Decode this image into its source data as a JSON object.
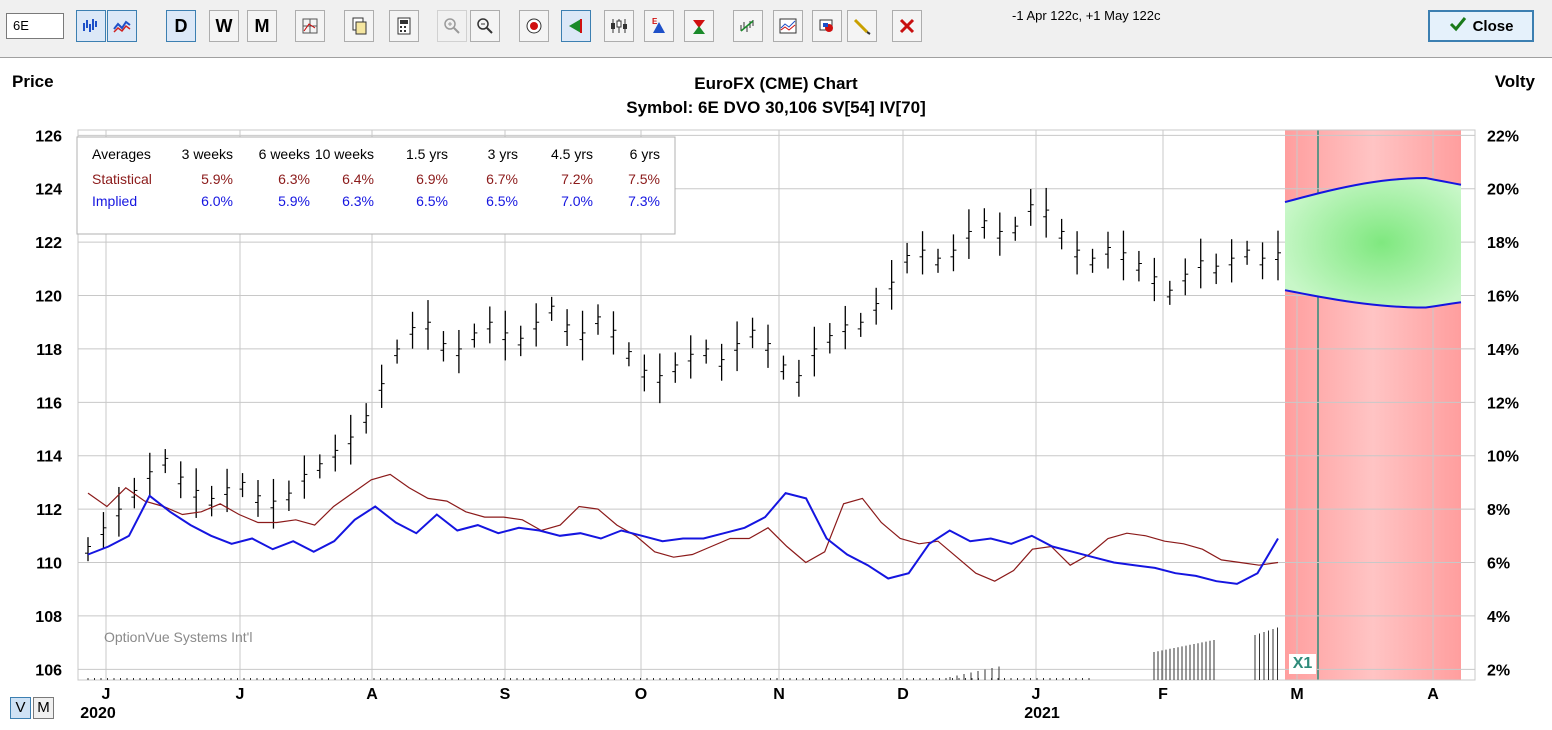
{
  "toolbar": {
    "symbol_value": "6E",
    "period_buttons": [
      "D",
      "W",
      "M"
    ],
    "message": "-1 Apr 122c, +1 May 122c",
    "close_label": "Close"
  },
  "chart": {
    "title": "EuroFX (CME) Chart",
    "subtitle": "Symbol: 6E  DVO 30,106  SV[54]  IV[70]",
    "left_axis_label": "Price",
    "right_axis_label": "Volty",
    "price_ticks": [
      "126",
      "124",
      "122",
      "120",
      "118",
      "116",
      "114",
      "112",
      "110",
      "108",
      "106"
    ],
    "volty_ticks": [
      "22%",
      "20%",
      "18%",
      "16%",
      "14%",
      "12%",
      "10%",
      "8%",
      "6%",
      "4%",
      "2%"
    ],
    "month_ticks": [
      "J",
      "J",
      "A",
      "S",
      "O",
      "N",
      "D",
      "J",
      "F",
      "M",
      "A"
    ],
    "year_labels": [
      "2020",
      "2021"
    ],
    "watermark": "OptionVue Systems Int'l",
    "expiry_marker": "X1",
    "view_toggle": [
      "V",
      "M"
    ]
  },
  "averages_table": {
    "headers": [
      "Averages",
      "3 weeks",
      "6 weeks",
      "10 weeks",
      "1.5 yrs",
      "3 yrs",
      "4.5 yrs",
      "6 yrs"
    ],
    "rows": [
      {
        "label": "Statistical",
        "values": [
          "5.9%",
          "6.3%",
          "6.4%",
          "6.9%",
          "6.7%",
          "7.2%",
          "7.5%"
        ],
        "color": "#8b1a1a"
      },
      {
        "label": "Implied",
        "values": [
          "6.0%",
          "5.9%",
          "6.3%",
          "6.5%",
          "6.5%",
          "7.0%",
          "7.3%"
        ],
        "color": "#1515e0"
      }
    ]
  },
  "chart_data": {
    "type": "line",
    "title": "EuroFX (CME) Chart",
    "ylabel": "Price",
    "y2label": "Volty",
    "ylim": [
      105.6,
      126.2
    ],
    "y2lim": [
      1.6,
      22.2
    ],
    "grid": true,
    "series": [
      {
        "name": "Price",
        "color": "#000000",
        "points": [
          [
            0,
            110.5
          ],
          [
            1,
            111.2
          ],
          [
            2,
            111.9
          ],
          [
            3,
            112.6
          ],
          [
            4,
            113.3
          ],
          [
            5,
            113.8
          ],
          [
            6,
            113.1
          ],
          [
            7,
            112.6
          ],
          [
            8,
            112.3
          ],
          [
            9,
            112.7
          ],
          [
            10,
            112.9
          ],
          [
            11,
            112.4
          ],
          [
            12,
            112.2
          ],
          [
            13,
            112.5
          ],
          [
            14,
            113.2
          ],
          [
            15,
            113.6
          ],
          [
            16,
            114.1
          ],
          [
            17,
            114.6
          ],
          [
            18,
            115.4
          ],
          [
            19,
            116.6
          ],
          [
            20,
            117.9
          ],
          [
            21,
            118.7
          ],
          [
            22,
            118.9
          ],
          [
            23,
            118.1
          ],
          [
            24,
            117.9
          ],
          [
            25,
            118.5
          ],
          [
            26,
            118.9
          ],
          [
            27,
            118.5
          ],
          [
            28,
            118.3
          ],
          [
            29,
            118.9
          ],
          [
            30,
            119.5
          ],
          [
            31,
            118.8
          ],
          [
            32,
            118.5
          ],
          [
            33,
            119.1
          ],
          [
            34,
            118.6
          ],
          [
            35,
            117.8
          ],
          [
            36,
            117.1
          ],
          [
            37,
            116.9
          ],
          [
            38,
            117.3
          ],
          [
            39,
            117.7
          ],
          [
            40,
            117.9
          ],
          [
            41,
            117.5
          ],
          [
            42,
            118.1
          ],
          [
            43,
            118.6
          ],
          [
            44,
            118.1
          ],
          [
            45,
            117.3
          ],
          [
            46,
            116.9
          ],
          [
            47,
            117.9
          ],
          [
            48,
            118.4
          ],
          [
            49,
            118.8
          ],
          [
            50,
            118.9
          ],
          [
            51,
            119.6
          ],
          [
            52,
            120.4
          ],
          [
            53,
            121.4
          ],
          [
            54,
            121.6
          ],
          [
            55,
            121.3
          ],
          [
            56,
            121.6
          ],
          [
            57,
            122.3
          ],
          [
            58,
            122.7
          ],
          [
            59,
            122.3
          ],
          [
            60,
            122.5
          ],
          [
            61,
            123.3
          ],
          [
            62,
            123.1
          ],
          [
            63,
            122.3
          ],
          [
            64,
            121.6
          ],
          [
            65,
            121.3
          ],
          [
            66,
            121.7
          ],
          [
            67,
            121.5
          ],
          [
            68,
            121.1
          ],
          [
            69,
            120.6
          ],
          [
            70,
            120.1
          ],
          [
            71,
            120.7
          ],
          [
            72,
            121.2
          ],
          [
            73,
            121.0
          ],
          [
            74,
            121.3
          ],
          [
            75,
            121.6
          ],
          [
            76,
            121.3
          ],
          [
            77,
            121.5
          ]
        ]
      },
      {
        "name": "Statistical",
        "color": "#8b1a1a",
        "points": [
          [
            0,
            8.6
          ],
          [
            1,
            8.1
          ],
          [
            2,
            8.8
          ],
          [
            3,
            8.3
          ],
          [
            4,
            8.1
          ],
          [
            5,
            7.8
          ],
          [
            6,
            7.9
          ],
          [
            7,
            8.2
          ],
          [
            8,
            7.8
          ],
          [
            9,
            7.5
          ],
          [
            10,
            7.5
          ],
          [
            11,
            7.6
          ],
          [
            12,
            7.4
          ],
          [
            13,
            8.1
          ],
          [
            14,
            8.6
          ],
          [
            15,
            9.1
          ],
          [
            16,
            9.3
          ],
          [
            17,
            8.8
          ],
          [
            18,
            8.4
          ],
          [
            19,
            8.3
          ],
          [
            20,
            7.9
          ],
          [
            21,
            7.7
          ],
          [
            22,
            7.7
          ],
          [
            23,
            7.6
          ],
          [
            24,
            7.2
          ],
          [
            25,
            7.4
          ],
          [
            26,
            8.1
          ],
          [
            27,
            8.0
          ],
          [
            28,
            7.4
          ],
          [
            29,
            7.0
          ],
          [
            30,
            6.4
          ],
          [
            31,
            6.2
          ],
          [
            32,
            6.3
          ],
          [
            33,
            6.6
          ],
          [
            34,
            6.9
          ],
          [
            35,
            6.9
          ],
          [
            36,
            7.3
          ],
          [
            37,
            6.6
          ],
          [
            38,
            6.0
          ],
          [
            39,
            6.4
          ],
          [
            40,
            8.2
          ],
          [
            41,
            8.4
          ],
          [
            42,
            7.5
          ],
          [
            43,
            6.9
          ],
          [
            44,
            6.7
          ],
          [
            45,
            6.8
          ],
          [
            46,
            6.2
          ],
          [
            47,
            5.6
          ],
          [
            48,
            5.3
          ],
          [
            49,
            5.7
          ],
          [
            50,
            6.5
          ],
          [
            51,
            6.6
          ],
          [
            52,
            5.9
          ],
          [
            53,
            6.3
          ],
          [
            54,
            6.9
          ],
          [
            55,
            7.1
          ],
          [
            56,
            7.0
          ],
          [
            57,
            6.8
          ],
          [
            58,
            6.7
          ],
          [
            59,
            6.5
          ],
          [
            60,
            6.1
          ],
          [
            61,
            6.0
          ],
          [
            62,
            5.9
          ],
          [
            63,
            6.0
          ]
        ]
      },
      {
        "name": "Implied",
        "color": "#1515e0",
        "points": [
          [
            0,
            6.3
          ],
          [
            1,
            6.6
          ],
          [
            2,
            7.0
          ],
          [
            3,
            8.5
          ],
          [
            4,
            7.9
          ],
          [
            5,
            7.4
          ],
          [
            6,
            7.0
          ],
          [
            7,
            6.7
          ],
          [
            8,
            6.9
          ],
          [
            9,
            6.5
          ],
          [
            10,
            6.8
          ],
          [
            11,
            6.4
          ],
          [
            12,
            6.8
          ],
          [
            13,
            7.6
          ],
          [
            14,
            8.1
          ],
          [
            15,
            7.5
          ],
          [
            16,
            7.1
          ],
          [
            17,
            7.8
          ],
          [
            18,
            7.2
          ],
          [
            19,
            7.4
          ],
          [
            20,
            7.1
          ],
          [
            21,
            7.3
          ],
          [
            22,
            7.2
          ],
          [
            23,
            7.0
          ],
          [
            24,
            7.1
          ],
          [
            25,
            6.9
          ],
          [
            26,
            7.2
          ],
          [
            27,
            7.0
          ],
          [
            28,
            6.8
          ],
          [
            29,
            6.9
          ],
          [
            30,
            6.9
          ],
          [
            31,
            7.1
          ],
          [
            32,
            7.3
          ],
          [
            33,
            7.7
          ],
          [
            34,
            8.6
          ],
          [
            35,
            8.4
          ],
          [
            36,
            6.9
          ],
          [
            37,
            6.3
          ],
          [
            38,
            5.9
          ],
          [
            39,
            5.4
          ],
          [
            40,
            5.6
          ],
          [
            41,
            6.7
          ],
          [
            42,
            7.2
          ],
          [
            43,
            6.8
          ],
          [
            44,
            6.9
          ],
          [
            45,
            6.7
          ],
          [
            46,
            7.0
          ],
          [
            47,
            6.6
          ],
          [
            48,
            6.4
          ],
          [
            49,
            6.2
          ],
          [
            50,
            6.0
          ],
          [
            51,
            5.9
          ],
          [
            52,
            5.8
          ],
          [
            53,
            5.6
          ],
          [
            54,
            5.5
          ],
          [
            55,
            5.3
          ],
          [
            56,
            5.2
          ],
          [
            57,
            5.6
          ],
          [
            58,
            6.9
          ]
        ]
      }
    ],
    "projection": {
      "x_start": "M",
      "x_end": "A",
      "upper_price": 123.5,
      "lower_price": 120.2,
      "shading": "green cone"
    },
    "future_region": {
      "shading": "red"
    }
  },
  "colors": {
    "statistical": "#8b1a1a",
    "implied": "#1515e0",
    "future_region": "#ffa8a8",
    "cone": "#9ff29f",
    "price": "#000000",
    "marker": "#2e8b7a"
  }
}
